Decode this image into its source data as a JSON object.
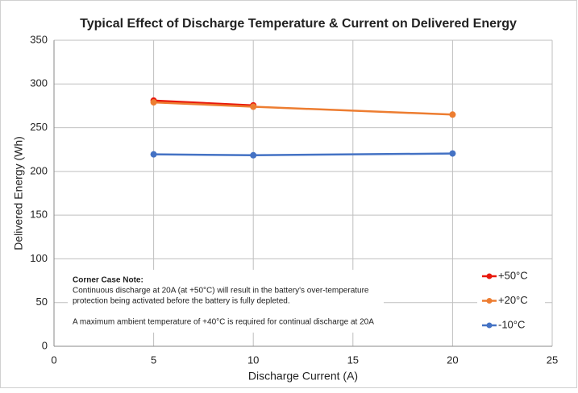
{
  "chart_data": {
    "type": "line",
    "title": "Typical Effect of Discharge Temperature & Current on Delivered Energy",
    "x_label": "Discharge Current (A)",
    "y_label": "Delivered Energy (Wh)",
    "x": [
      5,
      10,
      20
    ],
    "series": [
      {
        "name": "+50°C",
        "color": "#e8180c",
        "values": [
          281,
          275.5,
          null
        ]
      },
      {
        "name": "+20°C",
        "color": "#ed7d31",
        "values": [
          279,
          274,
          265
        ]
      },
      {
        "name": "-10°C",
        "color": "#4472c4",
        "values": [
          219.5,
          218.5,
          220.5
        ]
      }
    ],
    "xlim": [
      0,
      25
    ],
    "xticks": [
      0,
      5,
      10,
      15,
      20,
      25
    ],
    "ylim": [
      0,
      350
    ],
    "yticks": [
      0,
      50,
      100,
      150,
      200,
      250,
      300,
      350
    ],
    "grid": true,
    "legend": "right",
    "annotation": {
      "title": "Corner Case Note:",
      "lines": [
        "Continuous discharge at 20A (at +50°C) will result in the battery's over-temperature",
        "protection being activated before the battery is fully depleted.",
        "A maximum ambient temperature of +40°C is required for continual discharge at 20A"
      ]
    }
  }
}
